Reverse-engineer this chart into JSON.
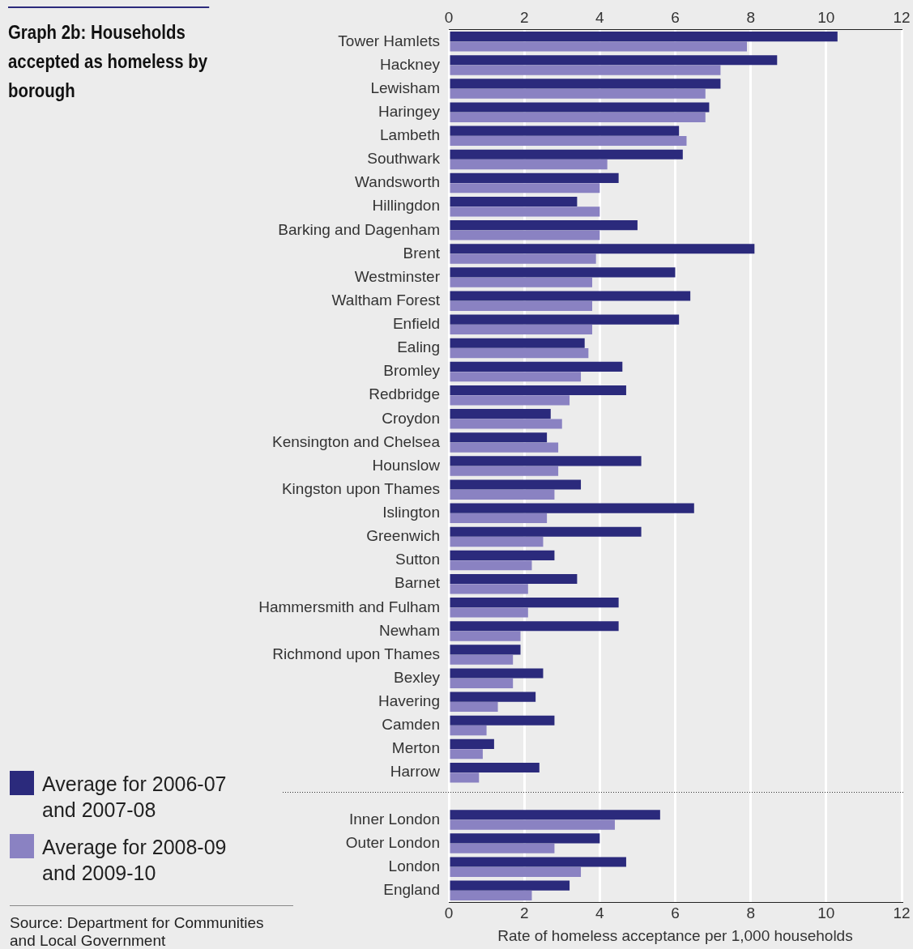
{
  "chart_data": {
    "type": "bar",
    "orientation": "horizontal",
    "title": "Graph 2b: Households accepted as homeless by borough",
    "xlabel": "Rate of homeless acceptance per 1,000 households",
    "categories": [
      "Tower Hamlets",
      "Hackney",
      "Lewisham",
      "Haringey",
      "Lambeth",
      "Southwark",
      "Wandsworth",
      "Hillingdon",
      "Barking and Dagenham",
      "Brent",
      "Westminster",
      "Waltham Forest",
      "Enfield",
      "Ealing",
      "Bromley",
      "Redbridge",
      "Croydon",
      "Kensington and Chelsea",
      "Hounslow",
      "Kingston upon Thames",
      "Islington",
      "Greenwich",
      "Sutton",
      "Barnet",
      "Hammersmith and Fulham",
      "Newham",
      "Richmond upon Thames",
      "Bexley",
      "Havering",
      "Camden",
      "Merton",
      "Harrow",
      null,
      "Inner London",
      "Outer London",
      "London",
      "England"
    ],
    "series": [
      {
        "name": "Average for 2006-07 and 2007-08",
        "color": "#2b2a7c",
        "values": [
          10.3,
          8.7,
          7.2,
          6.9,
          6.1,
          6.2,
          4.5,
          3.4,
          5.0,
          8.1,
          6.0,
          6.4,
          6.1,
          3.6,
          4.6,
          4.7,
          2.7,
          2.6,
          5.1,
          3.5,
          6.5,
          5.1,
          2.8,
          3.4,
          4.5,
          4.5,
          1.9,
          2.5,
          2.3,
          2.8,
          1.2,
          2.4,
          null,
          5.6,
          4.0,
          4.7,
          3.2
        ]
      },
      {
        "name": "Average for 2008-09 and 2009-10",
        "color": "#8a82c2",
        "values": [
          7.9,
          7.2,
          6.8,
          6.8,
          6.3,
          4.2,
          4.0,
          4.0,
          4.0,
          3.9,
          3.8,
          3.8,
          3.8,
          3.7,
          3.5,
          3.2,
          3.0,
          2.9,
          2.9,
          2.8,
          2.6,
          2.5,
          2.2,
          2.1,
          2.1,
          1.9,
          1.7,
          1.7,
          1.3,
          1.0,
          0.9,
          0.8,
          null,
          4.4,
          2.8,
          3.5,
          2.2
        ]
      }
    ],
    "xlim": [
      0,
      12
    ],
    "xticks": [
      0,
      2,
      4,
      6,
      8,
      10,
      12
    ],
    "x2lim": [
      0,
      12
    ],
    "x2ticks": [
      0,
      2,
      4,
      6,
      8,
      10,
      12
    ],
    "grid": "x",
    "legend": "bottom left",
    "annotations": [
      "Source: Department for Communities and Local Government"
    ]
  }
}
